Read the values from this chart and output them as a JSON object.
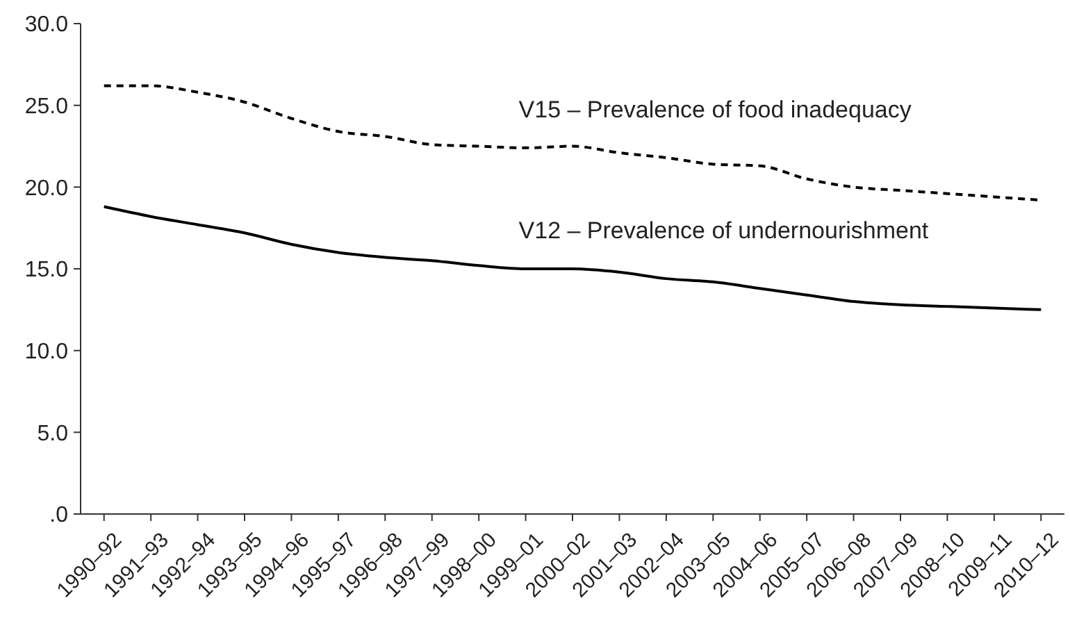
{
  "chart_data": {
    "type": "line",
    "categories": [
      "1990–92",
      "1991–93",
      "1992–94",
      "1993–95",
      "1994–96",
      "1995–97",
      "1996–98",
      "1997–99",
      "1998–00",
      "1999–01",
      "2000–02",
      "2001–03",
      "2002–04",
      "2003–05",
      "2004–06",
      "2005–07",
      "2006–08",
      "2007–09",
      "2008–10",
      "2009–11",
      "2010–12"
    ],
    "series": [
      {
        "name": "V15 – Prevalence of food inadequacy",
        "color": "#000000",
        "line_style": "dashed",
        "values": [
          26.2,
          26.2,
          25.8,
          25.2,
          24.2,
          23.4,
          23.1,
          22.6,
          22.5,
          22.4,
          22.5,
          22.1,
          21.8,
          21.4,
          21.3,
          20.5,
          20.0,
          19.8,
          19.6,
          19.4,
          19.2
        ]
      },
      {
        "name": "V12 – Prevalence of undernourishment",
        "color": "#000000",
        "line_style": "solid",
        "values": [
          18.8,
          18.2,
          17.7,
          17.2,
          16.5,
          16.0,
          15.7,
          15.5,
          15.2,
          15.0,
          15.0,
          14.8,
          14.4,
          14.2,
          13.8,
          13.4,
          13.0,
          12.8,
          12.7,
          12.6,
          12.5
        ]
      }
    ],
    "ylim": [
      0,
      30
    ],
    "yticks": [
      {
        "value": 0,
        "label": ".0"
      },
      {
        "value": 5,
        "label": "5.0"
      },
      {
        "value": 10,
        "label": "10.0"
      },
      {
        "value": 15,
        "label": "15.0"
      },
      {
        "value": 20,
        "label": "20.0"
      },
      {
        "value": 25,
        "label": "25.0"
      },
      {
        "value": 30,
        "label": "30.0"
      }
    ],
    "grid": false,
    "marker": "none"
  }
}
